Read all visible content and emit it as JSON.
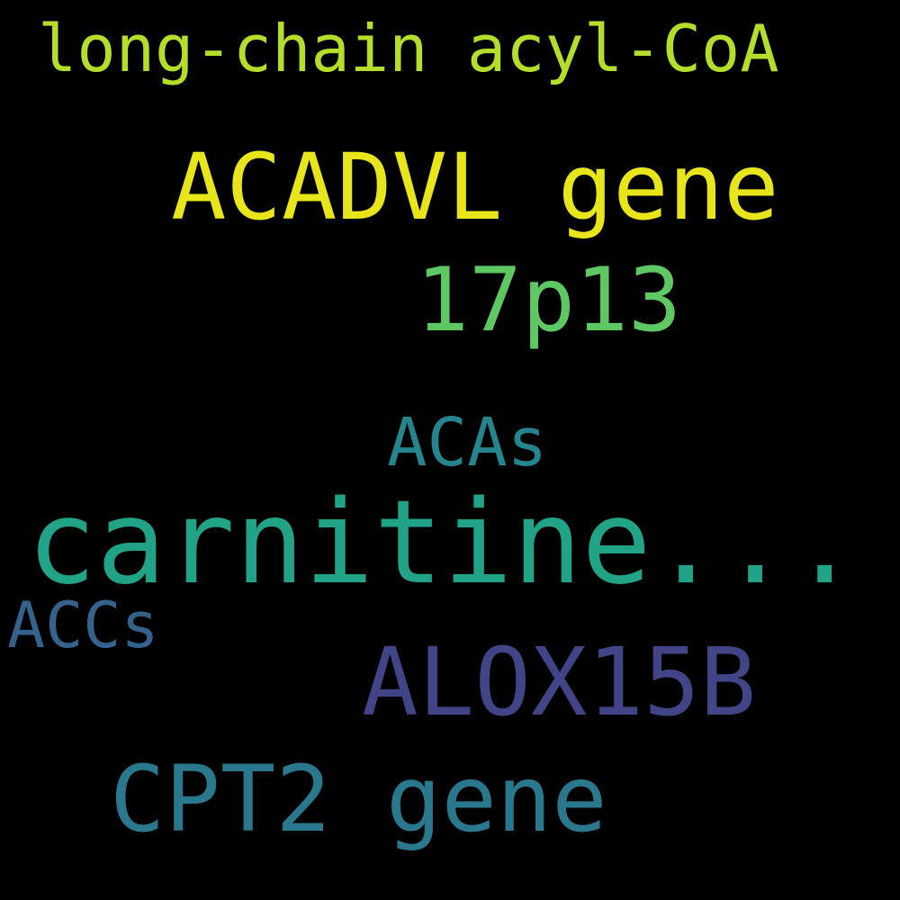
{
  "background": "#000000",
  "words": [
    {
      "text": "long-chain acyl-CoA",
      "color": "#b5de2b"
    },
    {
      "text": "ACADVL gene",
      "color": "#e8e51a"
    },
    {
      "text": "17p13",
      "color": "#5ec962"
    },
    {
      "text": "ACAs",
      "color": "#25858e"
    },
    {
      "text": "carnitine...",
      "color": "#20a386"
    },
    {
      "text": "ACCs",
      "color": "#33638d"
    },
    {
      "text": "ALOX15B",
      "color": "#414487"
    },
    {
      "text": "CPT2 gene",
      "color": "#2a788e"
    }
  ]
}
